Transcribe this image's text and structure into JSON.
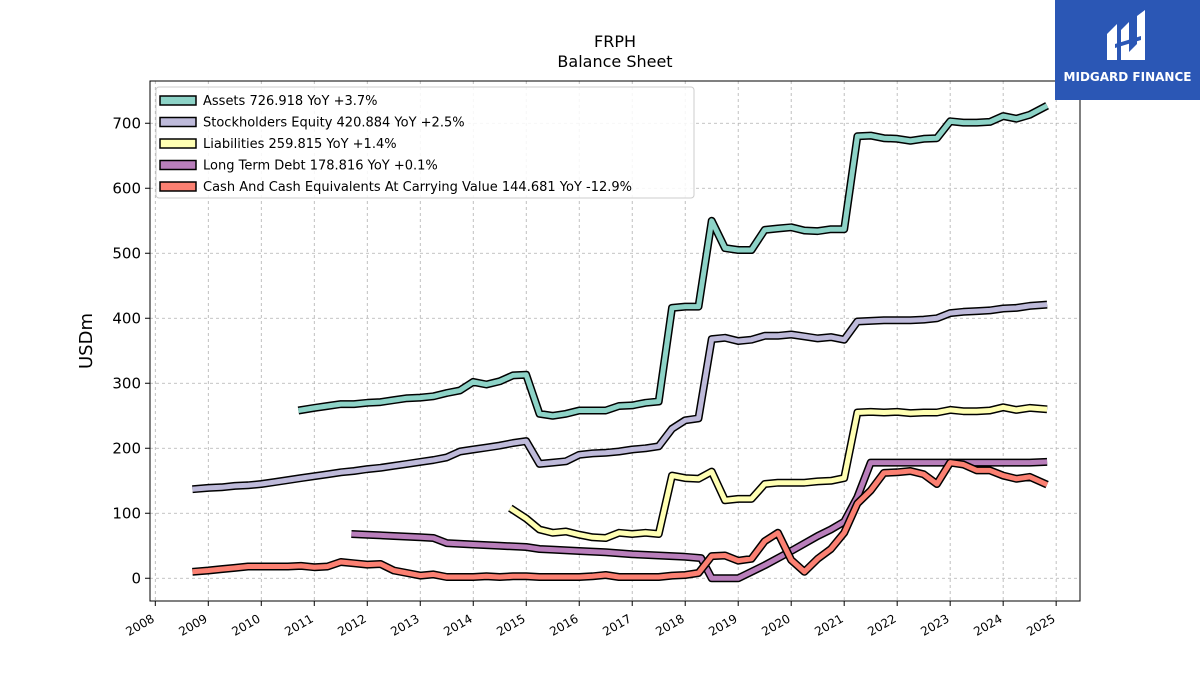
{
  "chart_data": {
    "type": "line",
    "title": "FRPH",
    "subtitle": "Balance  Sheet",
    "ylabel": "USDm",
    "xlabel": "",
    "xlim": [
      2007.9,
      2025.45
    ],
    "ylim": [
      -35,
      765
    ],
    "yticks": [
      0,
      100,
      200,
      300,
      400,
      500,
      600,
      700
    ],
    "xticks": [
      2008,
      2009,
      2010,
      2011,
      2012,
      2013,
      2014,
      2015,
      2016,
      2017,
      2018,
      2019,
      2020,
      2021,
      2022,
      2023,
      2024,
      2025
    ],
    "grid": true,
    "legend_position": "upper-left",
    "series": [
      {
        "name": "Assets  726.918 YoY +3.7%",
        "color": "#8dd3c7",
        "points": [
          [
            2010.7,
            258
          ],
          [
            2011.0,
            262
          ],
          [
            2011.25,
            265
          ],
          [
            2011.5,
            268
          ],
          [
            2011.75,
            268
          ],
          [
            2012.0,
            270
          ],
          [
            2012.25,
            271
          ],
          [
            2012.5,
            274
          ],
          [
            2012.75,
            277
          ],
          [
            2013.0,
            278
          ],
          [
            2013.25,
            280
          ],
          [
            2013.5,
            285
          ],
          [
            2013.75,
            289
          ],
          [
            2014.0,
            302
          ],
          [
            2014.25,
            298
          ],
          [
            2014.5,
            303
          ],
          [
            2014.75,
            312
          ],
          [
            2015.0,
            313
          ],
          [
            2015.25,
            253
          ],
          [
            2015.5,
            250
          ],
          [
            2015.75,
            253
          ],
          [
            2016.0,
            258
          ],
          [
            2016.25,
            258
          ],
          [
            2016.5,
            258
          ],
          [
            2016.75,
            265
          ],
          [
            2017.0,
            266
          ],
          [
            2017.25,
            270
          ],
          [
            2017.5,
            272
          ],
          [
            2017.75,
            416
          ],
          [
            2018.0,
            418
          ],
          [
            2018.25,
            418
          ],
          [
            2018.5,
            550
          ],
          [
            2018.75,
            508
          ],
          [
            2019.0,
            505
          ],
          [
            2019.25,
            505
          ],
          [
            2019.5,
            536
          ],
          [
            2019.75,
            538
          ],
          [
            2020.0,
            540
          ],
          [
            2020.25,
            535
          ],
          [
            2020.5,
            534
          ],
          [
            2020.75,
            537
          ],
          [
            2021.0,
            537
          ],
          [
            2021.25,
            680
          ],
          [
            2021.5,
            681
          ],
          [
            2021.75,
            677
          ],
          [
            2022.0,
            676
          ],
          [
            2022.25,
            673
          ],
          [
            2022.5,
            676
          ],
          [
            2022.75,
            677
          ],
          [
            2023.0,
            703
          ],
          [
            2023.25,
            701
          ],
          [
            2023.5,
            701
          ],
          [
            2023.75,
            702
          ],
          [
            2024.0,
            711
          ],
          [
            2024.25,
            707
          ],
          [
            2024.5,
            713
          ],
          [
            2024.83,
            727
          ]
        ]
      },
      {
        "name": "Stockholders Equity  420.884 YoY +2.5%",
        "color": "#bebada",
        "points": [
          [
            2008.7,
            137
          ],
          [
            2009.0,
            139
          ],
          [
            2009.25,
            140
          ],
          [
            2009.5,
            142
          ],
          [
            2009.75,
            143
          ],
          [
            2010.0,
            145
          ],
          [
            2010.25,
            148
          ],
          [
            2010.5,
            151
          ],
          [
            2010.75,
            154
          ],
          [
            2011.0,
            157
          ],
          [
            2011.25,
            160
          ],
          [
            2011.5,
            163
          ],
          [
            2011.75,
            165
          ],
          [
            2012.0,
            168
          ],
          [
            2012.25,
            170
          ],
          [
            2012.5,
            173
          ],
          [
            2012.75,
            176
          ],
          [
            2013.0,
            179
          ],
          [
            2013.25,
            182
          ],
          [
            2013.5,
            186
          ],
          [
            2013.75,
            195
          ],
          [
            2014.0,
            198
          ],
          [
            2014.25,
            201
          ],
          [
            2014.5,
            204
          ],
          [
            2014.75,
            208
          ],
          [
            2015.0,
            211
          ],
          [
            2015.25,
            176
          ],
          [
            2015.5,
            178
          ],
          [
            2015.75,
            180
          ],
          [
            2016.0,
            190
          ],
          [
            2016.25,
            192
          ],
          [
            2016.5,
            193
          ],
          [
            2016.75,
            195
          ],
          [
            2017.0,
            198
          ],
          [
            2017.25,
            200
          ],
          [
            2017.5,
            203
          ],
          [
            2017.75,
            230
          ],
          [
            2018.0,
            243
          ],
          [
            2018.25,
            246
          ],
          [
            2018.5,
            368
          ],
          [
            2018.75,
            370
          ],
          [
            2019.0,
            365
          ],
          [
            2019.25,
            367
          ],
          [
            2019.5,
            373
          ],
          [
            2019.75,
            373
          ],
          [
            2020.0,
            375
          ],
          [
            2020.25,
            372
          ],
          [
            2020.5,
            369
          ],
          [
            2020.75,
            371
          ],
          [
            2021.0,
            367
          ],
          [
            2021.25,
            395
          ],
          [
            2021.5,
            396
          ],
          [
            2021.75,
            397
          ],
          [
            2022.0,
            397
          ],
          [
            2022.25,
            397
          ],
          [
            2022.5,
            398
          ],
          [
            2022.75,
            400
          ],
          [
            2023.0,
            408
          ],
          [
            2023.25,
            410
          ],
          [
            2023.5,
            411
          ],
          [
            2023.75,
            412
          ],
          [
            2024.0,
            415
          ],
          [
            2024.25,
            416
          ],
          [
            2024.5,
            419
          ],
          [
            2024.83,
            421
          ]
        ]
      },
      {
        "name": "Liabilities  259.815 YoY +1.4%",
        "color": "#ffffb3",
        "points": [
          [
            2014.7,
            108
          ],
          [
            2015.0,
            92
          ],
          [
            2015.25,
            75
          ],
          [
            2015.5,
            70
          ],
          [
            2015.75,
            72
          ],
          [
            2016.0,
            67
          ],
          [
            2016.25,
            63
          ],
          [
            2016.5,
            62
          ],
          [
            2016.75,
            70
          ],
          [
            2017.0,
            68
          ],
          [
            2017.25,
            70
          ],
          [
            2017.5,
            68
          ],
          [
            2017.75,
            158
          ],
          [
            2018.0,
            154
          ],
          [
            2018.25,
            153
          ],
          [
            2018.5,
            164
          ],
          [
            2018.75,
            120
          ],
          [
            2019.0,
            122
          ],
          [
            2019.25,
            122
          ],
          [
            2019.5,
            145
          ],
          [
            2019.75,
            147
          ],
          [
            2020.0,
            147
          ],
          [
            2020.25,
            147
          ],
          [
            2020.5,
            149
          ],
          [
            2020.75,
            150
          ],
          [
            2021.0,
            154
          ],
          [
            2021.25,
            255
          ],
          [
            2021.5,
            256
          ],
          [
            2021.75,
            255
          ],
          [
            2022.0,
            256
          ],
          [
            2022.25,
            254
          ],
          [
            2022.5,
            255
          ],
          [
            2022.75,
            255
          ],
          [
            2023.0,
            259
          ],
          [
            2023.25,
            257
          ],
          [
            2023.5,
            257
          ],
          [
            2023.75,
            258
          ],
          [
            2024.0,
            263
          ],
          [
            2024.25,
            259
          ],
          [
            2024.5,
            262
          ],
          [
            2024.83,
            260
          ]
        ]
      },
      {
        "name": "Long Term Debt  178.816 YoY +0.1%",
        "color": "#b97ebb",
        "points": [
          [
            2011.7,
            68
          ],
          [
            2012.0,
            67
          ],
          [
            2012.5,
            65
          ],
          [
            2013.0,
            63
          ],
          [
            2013.25,
            62
          ],
          [
            2013.5,
            54
          ],
          [
            2014.0,
            52
          ],
          [
            2014.5,
            50
          ],
          [
            2015.0,
            48
          ],
          [
            2015.25,
            45
          ],
          [
            2015.5,
            44
          ],
          [
            2016.0,
            42
          ],
          [
            2016.5,
            40
          ],
          [
            2017.0,
            37
          ],
          [
            2017.5,
            35
          ],
          [
            2018.0,
            33
          ],
          [
            2018.3,
            31
          ],
          [
            2018.5,
            0
          ],
          [
            2018.75,
            0
          ],
          [
            2019.0,
            0
          ],
          [
            2019.5,
            20
          ],
          [
            2020.0,
            42
          ],
          [
            2020.5,
            65
          ],
          [
            2020.75,
            75
          ],
          [
            2021.0,
            87
          ],
          [
            2021.25,
            125
          ],
          [
            2021.5,
            178
          ],
          [
            2021.75,
            178
          ],
          [
            2022.0,
            178
          ],
          [
            2022.5,
            178
          ],
          [
            2023.0,
            178
          ],
          [
            2023.5,
            178
          ],
          [
            2024.0,
            178
          ],
          [
            2024.5,
            178
          ],
          [
            2024.83,
            179
          ]
        ]
      },
      {
        "name": "Cash And Cash Equivalents At Carrying Value  144.681 YoY -12.9%",
        "color": "#fb8072",
        "points": [
          [
            2008.7,
            10
          ],
          [
            2009.0,
            12
          ],
          [
            2009.25,
            14
          ],
          [
            2009.5,
            16
          ],
          [
            2009.75,
            18
          ],
          [
            2010.0,
            18
          ],
          [
            2010.25,
            18
          ],
          [
            2010.5,
            18
          ],
          [
            2010.75,
            19
          ],
          [
            2011.0,
            17
          ],
          [
            2011.25,
            18
          ],
          [
            2011.5,
            25
          ],
          [
            2011.75,
            23
          ],
          [
            2012.0,
            21
          ],
          [
            2012.25,
            22
          ],
          [
            2012.5,
            12
          ],
          [
            2012.75,
            8
          ],
          [
            2013.0,
            4
          ],
          [
            2013.25,
            6
          ],
          [
            2013.5,
            2
          ],
          [
            2013.75,
            2
          ],
          [
            2014.0,
            2
          ],
          [
            2014.25,
            3
          ],
          [
            2014.5,
            2
          ],
          [
            2014.75,
            3
          ],
          [
            2015.0,
            3
          ],
          [
            2015.25,
            2
          ],
          [
            2015.5,
            2
          ],
          [
            2015.75,
            2
          ],
          [
            2016.0,
            2
          ],
          [
            2016.25,
            3
          ],
          [
            2016.5,
            5
          ],
          [
            2016.75,
            2
          ],
          [
            2017.0,
            2
          ],
          [
            2017.25,
            2
          ],
          [
            2017.5,
            2
          ],
          [
            2017.75,
            4
          ],
          [
            2018.0,
            5
          ],
          [
            2018.25,
            8
          ],
          [
            2018.5,
            34
          ],
          [
            2018.75,
            35
          ],
          [
            2019.0,
            27
          ],
          [
            2019.25,
            30
          ],
          [
            2019.5,
            57
          ],
          [
            2019.75,
            70
          ],
          [
            2020.0,
            28
          ],
          [
            2020.25,
            10
          ],
          [
            2020.5,
            30
          ],
          [
            2020.75,
            45
          ],
          [
            2021.0,
            70
          ],
          [
            2021.25,
            115
          ],
          [
            2021.5,
            135
          ],
          [
            2021.75,
            162
          ],
          [
            2022.0,
            163
          ],
          [
            2022.25,
            165
          ],
          [
            2022.5,
            160
          ],
          [
            2022.75,
            145
          ],
          [
            2023.0,
            178
          ],
          [
            2023.25,
            175
          ],
          [
            2023.5,
            166
          ],
          [
            2023.75,
            166
          ],
          [
            2024.0,
            158
          ],
          [
            2024.25,
            153
          ],
          [
            2024.5,
            156
          ],
          [
            2024.83,
            144
          ]
        ]
      }
    ]
  },
  "logo": {
    "text": "MIDGARD FINANCE"
  }
}
